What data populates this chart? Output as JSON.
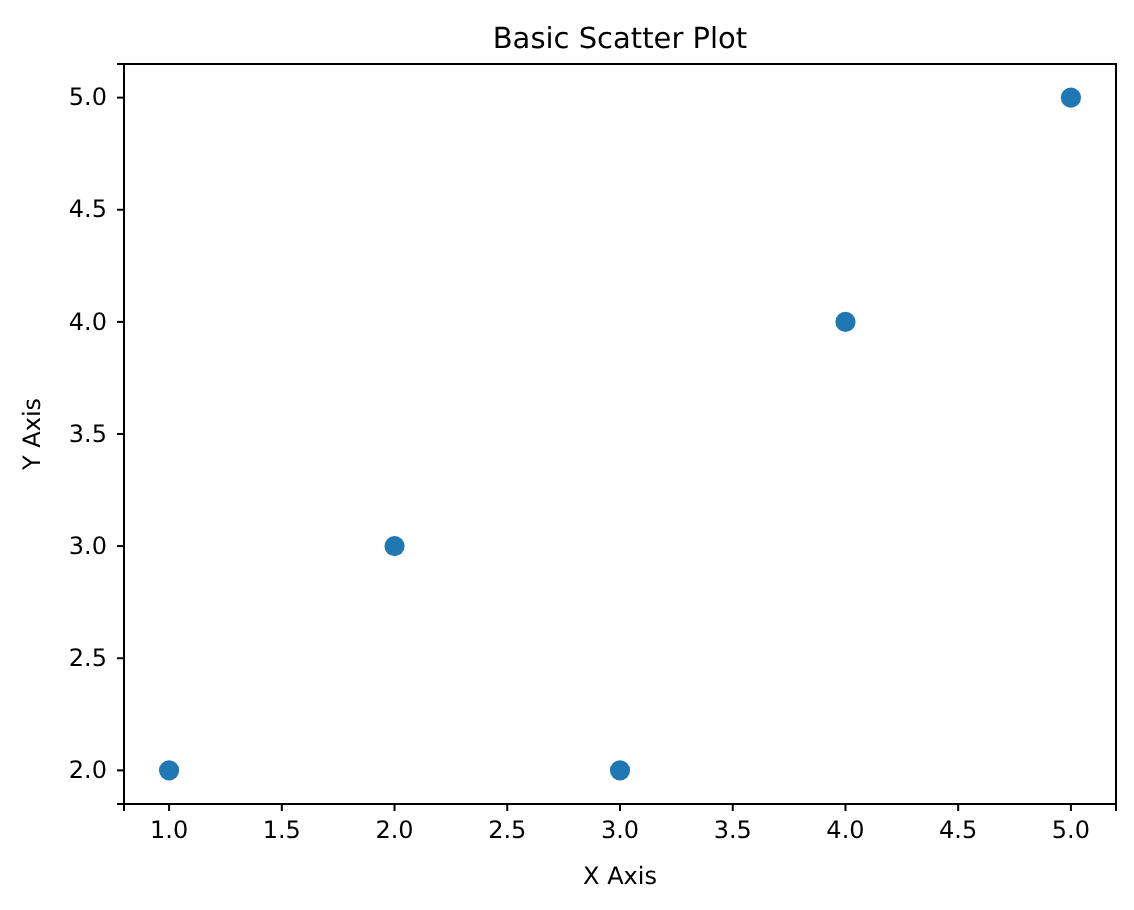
{
  "chart_data": {
    "type": "scatter",
    "title": "Basic Scatter Plot",
    "xlabel": "X Axis",
    "ylabel": "Y Axis",
    "x": [
      1,
      2,
      3,
      4,
      5
    ],
    "values": [
      2,
      3,
      2,
      4,
      5
    ],
    "color": "#1f77b4",
    "marker": "circle",
    "xlim": [
      0.8,
      5.2
    ],
    "ylim": [
      1.85,
      5.15
    ],
    "xticks": [
      {
        "value": 1,
        "label": "1.0"
      },
      {
        "value": 1.5,
        "label": "1.5"
      },
      {
        "value": 2,
        "label": "2.0"
      },
      {
        "value": 2.5,
        "label": "2.5"
      },
      {
        "value": 3,
        "label": "3.0"
      },
      {
        "value": 3.5,
        "label": "3.5"
      },
      {
        "value": 4,
        "label": "4.0"
      },
      {
        "value": 4.5,
        "label": "4.5"
      },
      {
        "value": 5,
        "label": "5.0"
      }
    ],
    "yticks": [
      {
        "value": 2,
        "label": "2.0"
      },
      {
        "value": 2.5,
        "label": "2.5"
      },
      {
        "value": 3,
        "label": "3.0"
      },
      {
        "value": 3.5,
        "label": "3.5"
      },
      {
        "value": 4,
        "label": "4.0"
      },
      {
        "value": 4.5,
        "label": "4.5"
      },
      {
        "value": 5,
        "label": "5.0"
      }
    ]
  }
}
